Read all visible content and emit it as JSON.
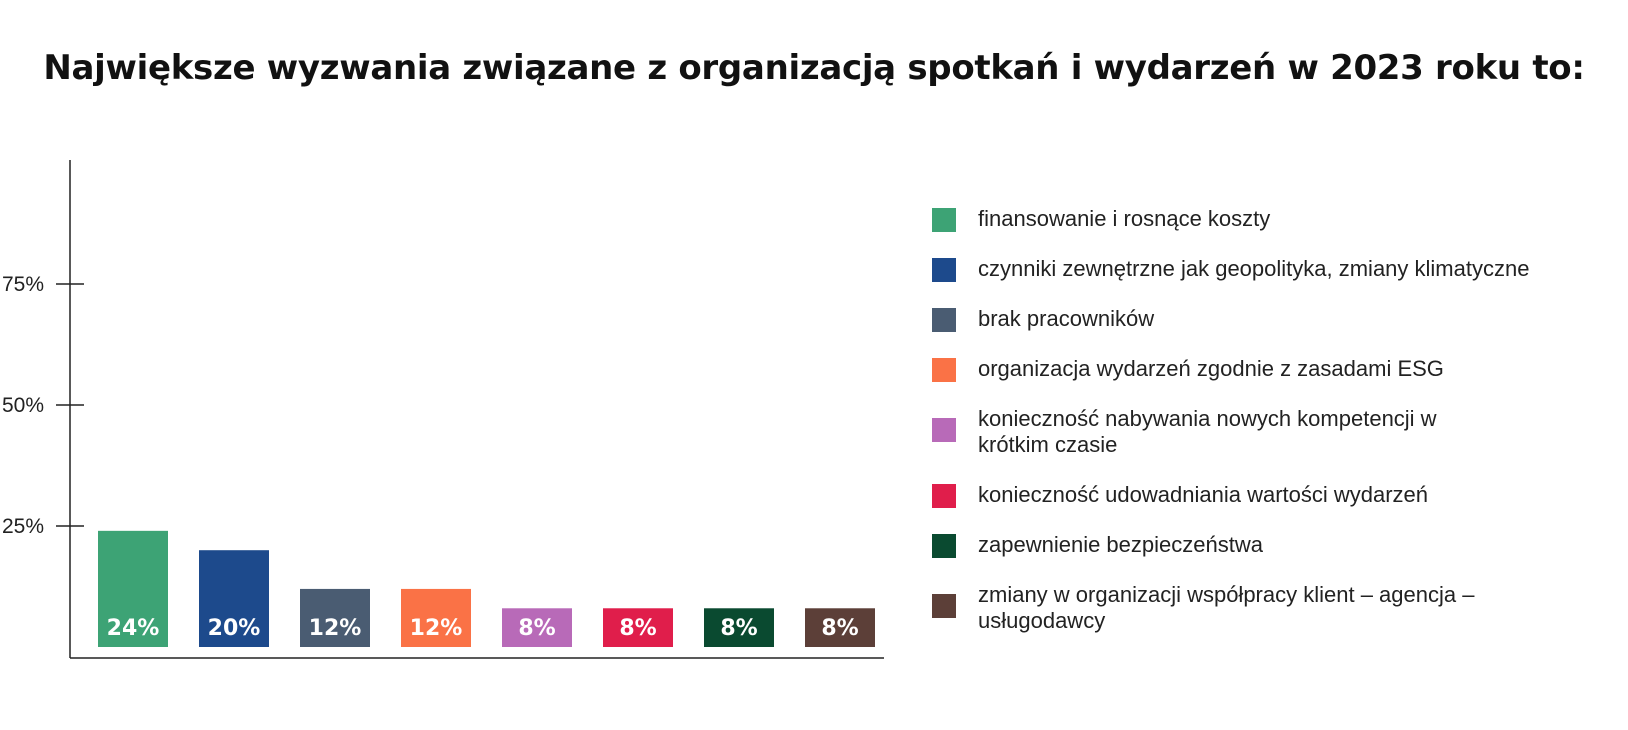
{
  "title": "Największe wyzwania związane z organizacją spotkań i wydarzeń w 2023 roku to:",
  "chart_data": {
    "type": "bar",
    "title": "Największe wyzwania związane z organizacją spotkań i wydarzeń w 2023 roku to:",
    "xlabel": "",
    "ylabel": "",
    "ylim": [
      0,
      100
    ],
    "y_ticks": [
      25,
      50,
      75
    ],
    "y_tick_labels": [
      "25%",
      "50%",
      "75%"
    ],
    "grid": false,
    "legend_position": "right",
    "categories": [
      "finansowanie i rosnące koszty",
      "czynniki zewnętrzne jak geopolityka, zmiany klimatyczne",
      "brak pracowników",
      "organizacja wydarzeń zgodnie z zasadami ESG",
      "konieczność nabywania nowych kompetencji w krótkim czasie",
      "konieczność udowadniania wartości wydarzeń",
      "zapewnienie bezpieczeństwa",
      "zmiany w organizacji współpracy klient – agencja – usługodawcy"
    ],
    "values": [
      24,
      20,
      12,
      12,
      8,
      8,
      8,
      8
    ],
    "value_labels": [
      "24%",
      "20%",
      "12%",
      "12%",
      "8%",
      "8%",
      "8%",
      "8%"
    ],
    "colors": [
      "#3DA375",
      "#1D4A8C",
      "#4A5C72",
      "#FA7246",
      "#B86AB8",
      "#E01E4B",
      "#0A4A30",
      "#5C3F38"
    ]
  }
}
